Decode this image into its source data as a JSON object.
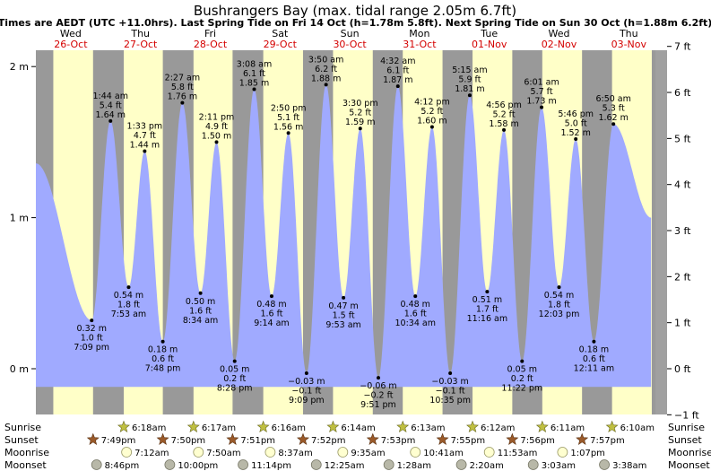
{
  "chart_data": {
    "type": "area",
    "title": "Bushrangers Bay (max. tidal range 2.05m 6.7ft)",
    "subtitle": "Times are AEDT (UTC +11.0hrs). Last Spring Tide on Fri 14 Oct (h=1.78m 5.8ft). Next Spring Tide on Sun 30 Oct (h=1.88m 6.2ft)",
    "days": [
      {
        "name": "Wed",
        "date": "26-Oct"
      },
      {
        "name": "Thu",
        "date": "27-Oct"
      },
      {
        "name": "Fri",
        "date": "28-Oct"
      },
      {
        "name": "Sat",
        "date": "29-Oct"
      },
      {
        "name": "Sun",
        "date": "30-Oct"
      },
      {
        "name": "Mon",
        "date": "31-Oct"
      },
      {
        "name": "Tue",
        "date": "01-Nov"
      },
      {
        "name": "Wed",
        "date": "02-Nov"
      },
      {
        "name": "Thu",
        "date": "03-Nov"
      }
    ],
    "x_range_days": [
      0,
      8.82
    ],
    "ylim_m": [
      -0.25,
      2.2
    ],
    "left_axis_ticks": [
      {
        "value": 0,
        "label": "0 m"
      },
      {
        "value": 1,
        "label": "1 m"
      },
      {
        "value": 2,
        "label": "2 m"
      }
    ],
    "right_axis_ticks": [
      {
        "value": -1,
        "label": "−1 ft"
      },
      {
        "value": 0,
        "label": "0 ft"
      },
      {
        "value": 1,
        "label": "1 ft"
      },
      {
        "value": 2,
        "label": "2 ft"
      },
      {
        "value": 3,
        "label": "3 ft"
      },
      {
        "value": 4,
        "label": "4 ft"
      },
      {
        "value": 5,
        "label": "5 ft"
      },
      {
        "value": 6,
        "label": "6 ft"
      },
      {
        "value": 7,
        "label": "7 ft"
      }
    ],
    "series_start": {
      "t": 0.0,
      "h": 1.36
    },
    "series_end": {
      "t": 8.82,
      "h": 1.0
    },
    "tides": [
      {
        "type": "low",
        "t": 0.8,
        "h": 0.32,
        "time": "7:09 pm",
        "m": "0.32 m",
        "ft": "1.0 ft"
      },
      {
        "type": "high",
        "t": 1.07,
        "h": 1.64,
        "time": "1:44 am",
        "m": "1.64 m",
        "ft": "5.4 ft"
      },
      {
        "type": "low",
        "t": 1.33,
        "h": 0.54,
        "time": "7:53 am",
        "m": "0.54 m",
        "ft": "1.8 ft"
      },
      {
        "type": "high",
        "t": 1.56,
        "h": 1.44,
        "time": "1:33 pm",
        "m": "1.44 m",
        "ft": "4.7 ft"
      },
      {
        "type": "low",
        "t": 1.82,
        "h": 0.18,
        "time": "7:48 pm",
        "m": "0.18 m",
        "ft": "0.6 ft"
      },
      {
        "type": "high",
        "t": 2.1,
        "h": 1.76,
        "time": "2:27 am",
        "m": "1.76 m",
        "ft": "5.8 ft"
      },
      {
        "type": "low",
        "t": 2.36,
        "h": 0.5,
        "time": "8:34 am",
        "m": "0.50 m",
        "ft": "1.6 ft"
      },
      {
        "type": "high",
        "t": 2.59,
        "h": 1.5,
        "time": "2:11 pm",
        "m": "1.50 m",
        "ft": "4.9 ft"
      },
      {
        "type": "low",
        "t": 2.85,
        "h": 0.05,
        "time": "8:28 pm",
        "m": "0.05 m",
        "ft": "0.2 ft"
      },
      {
        "type": "high",
        "t": 3.13,
        "h": 1.85,
        "time": "3:08 am",
        "m": "1.85 m",
        "ft": "6.1 ft"
      },
      {
        "type": "low",
        "t": 3.38,
        "h": 0.48,
        "time": "9:14 am",
        "m": "0.48 m",
        "ft": "1.6 ft"
      },
      {
        "type": "high",
        "t": 3.62,
        "h": 1.56,
        "time": "2:50 pm",
        "m": "1.56 m",
        "ft": "5.1 ft"
      },
      {
        "type": "low",
        "t": 3.88,
        "h": -0.03,
        "time": "9:09 pm",
        "m": "−0.03 m",
        "ft": "−0.1 ft"
      },
      {
        "type": "high",
        "t": 4.16,
        "h": 1.88,
        "time": "3:50 am",
        "m": "1.88 m",
        "ft": "6.2 ft"
      },
      {
        "type": "low",
        "t": 4.41,
        "h": 0.47,
        "time": "9:53 am",
        "m": "0.47 m",
        "ft": "1.5 ft"
      },
      {
        "type": "high",
        "t": 4.65,
        "h": 1.59,
        "time": "3:30 pm",
        "m": "1.59 m",
        "ft": "5.2 ft"
      },
      {
        "type": "low",
        "t": 4.91,
        "h": -0.06,
        "time": "9:51 pm",
        "m": "−0.06 m",
        "ft": "−0.2 ft"
      },
      {
        "type": "high",
        "t": 5.19,
        "h": 1.87,
        "time": "4:32 am",
        "m": "1.87 m",
        "ft": "6.1 ft"
      },
      {
        "type": "low",
        "t": 5.44,
        "h": 0.48,
        "time": "10:34 am",
        "m": "0.48 m",
        "ft": "1.6 ft"
      },
      {
        "type": "high",
        "t": 5.68,
        "h": 1.6,
        "time": "4:12 pm",
        "m": "1.60 m",
        "ft": "5.2 ft"
      },
      {
        "type": "low",
        "t": 5.94,
        "h": -0.03,
        "time": "10:35 pm",
        "m": "−0.03 m",
        "ft": "−0.1 ft"
      },
      {
        "type": "high",
        "t": 6.22,
        "h": 1.81,
        "time": "5:15 am",
        "m": "1.81 m",
        "ft": "5.9 ft"
      },
      {
        "type": "low",
        "t": 6.47,
        "h": 0.51,
        "time": "11:16 am",
        "m": "0.51 m",
        "ft": "1.7 ft"
      },
      {
        "type": "high",
        "t": 6.71,
        "h": 1.58,
        "time": "4:56 pm",
        "m": "1.58 m",
        "ft": "5.2 ft"
      },
      {
        "type": "low",
        "t": 6.97,
        "h": 0.05,
        "time": "11:22 pm",
        "m": "0.05 m",
        "ft": "0.2 ft"
      },
      {
        "type": "high",
        "t": 7.25,
        "h": 1.73,
        "time": "6:01 am",
        "m": "1.73 m",
        "ft": "5.7 ft"
      },
      {
        "type": "low",
        "t": 7.5,
        "h": 0.54,
        "time": "12:03 pm",
        "m": "0.54 m",
        "ft": "1.8 ft"
      },
      {
        "type": "high",
        "t": 7.74,
        "h": 1.52,
        "time": "5:46 pm",
        "m": "1.52 m",
        "ft": "5.0 ft"
      },
      {
        "type": "low",
        "t": 8.0,
        "h": 0.18,
        "time": "12:11 am",
        "m": "0.18 m",
        "ft": "0.6 ft"
      },
      {
        "type": "high",
        "t": 8.28,
        "h": 1.62,
        "time": "6:50 am",
        "m": "1.62 m",
        "ft": "5.3 ft"
      }
    ],
    "night_bands": [
      [
        -0.5,
        0.25
      ],
      [
        0.82,
        1.26
      ],
      [
        1.82,
        2.26
      ],
      [
        2.82,
        3.26
      ],
      [
        3.83,
        4.26
      ],
      [
        4.83,
        5.26
      ],
      [
        5.83,
        6.26
      ],
      [
        6.83,
        7.26
      ],
      [
        7.83,
        8.26
      ],
      [
        8.83,
        9.3
      ]
    ],
    "events": {
      "sunrise": {
        "label": "Sunrise",
        "items": [
          {
            "t": 1.26,
            "time": "6:18am"
          },
          {
            "t": 2.26,
            "time": "6:17am"
          },
          {
            "t": 3.26,
            "time": "6:16am"
          },
          {
            "t": 4.26,
            "time": "6:14am"
          },
          {
            "t": 5.26,
            "time": "6:13am"
          },
          {
            "t": 6.26,
            "time": "6:12am"
          },
          {
            "t": 7.26,
            "time": "6:11am"
          },
          {
            "t": 8.26,
            "time": "6:10am"
          }
        ]
      },
      "sunset": {
        "label": "Sunset",
        "items": [
          {
            "t": 0.82,
            "time": "7:49pm"
          },
          {
            "t": 1.82,
            "time": "7:50pm"
          },
          {
            "t": 2.82,
            "time": "7:51pm"
          },
          {
            "t": 3.83,
            "time": "7:52pm"
          },
          {
            "t": 4.83,
            "time": "7:53pm"
          },
          {
            "t": 5.83,
            "time": "7:55pm"
          },
          {
            "t": 6.83,
            "time": "7:56pm"
          },
          {
            "t": 7.83,
            "time": "7:57pm"
          }
        ]
      },
      "moonrise": {
        "label": "Moonrise",
        "items": [
          {
            "t": 1.3,
            "time": "7:12am"
          },
          {
            "t": 2.33,
            "time": "7:50am"
          },
          {
            "t": 3.36,
            "time": "8:37am"
          },
          {
            "t": 4.4,
            "time": "9:35am"
          },
          {
            "t": 5.44,
            "time": "10:41am"
          },
          {
            "t": 6.5,
            "time": "11:53am"
          },
          {
            "t": 7.55,
            "time": "1:07pm"
          }
        ]
      },
      "moonset": {
        "label": "Moonset",
        "items": [
          {
            "t": 0.87,
            "time": "8:46pm"
          },
          {
            "t": 1.92,
            "time": "10:00pm"
          },
          {
            "t": 2.97,
            "time": "11:14pm"
          },
          {
            "t": 4.02,
            "time": "12:25am"
          },
          {
            "t": 5.06,
            "time": "1:28am"
          },
          {
            "t": 6.1,
            "time": "2:20am"
          },
          {
            "t": 7.13,
            "time": "3:03am"
          },
          {
            "t": 8.15,
            "time": "3:38am"
          }
        ]
      }
    },
    "colors": {
      "day_bg": "#ffffc8",
      "night_bg": "#999999",
      "water": "#a0aaff",
      "axis_gray": "#a0a0a0",
      "date_red": "#d40000",
      "sun_fill": "#bfbf40",
      "sunset_fill": "#9a5a2a",
      "moon_fill": "#ffffd0",
      "moonset_fill": "#b8b8a8"
    }
  }
}
